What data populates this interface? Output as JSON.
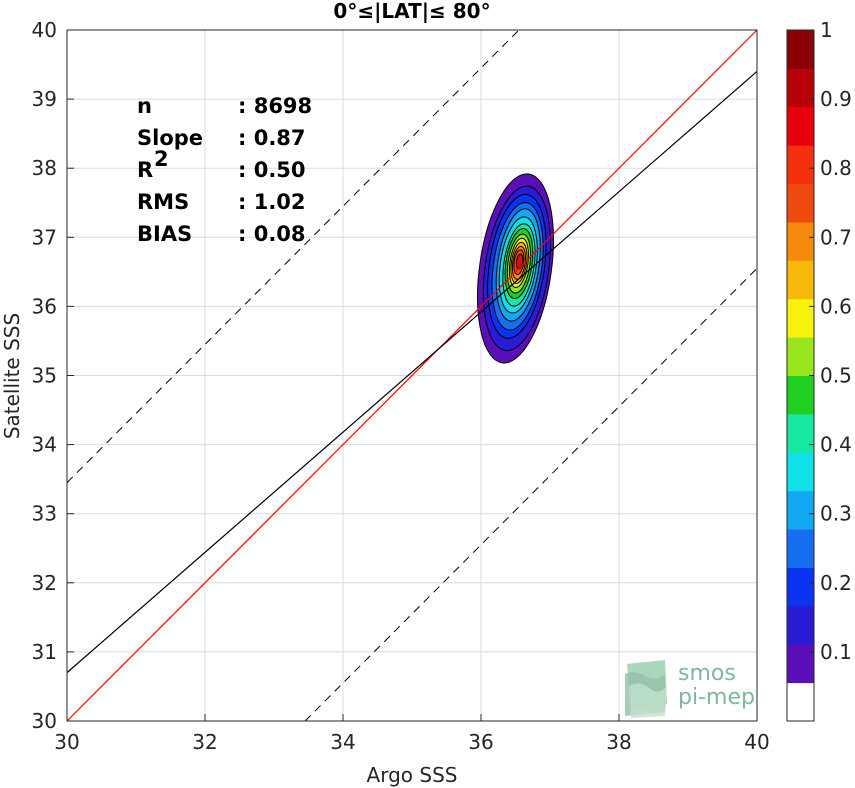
{
  "chart_data": {
    "type": "scatter",
    "title": "0°≤|LAT|≤ 80°",
    "xlabel": "Argo SSS",
    "ylabel": "Satellite SSS",
    "xlim": [
      30,
      40
    ],
    "ylim": [
      30,
      40
    ],
    "xticks": [
      "30",
      "32",
      "34",
      "36",
      "38",
      "40"
    ],
    "yticks": [
      "30",
      "31",
      "32",
      "33",
      "34",
      "35",
      "36",
      "37",
      "38",
      "39",
      "40"
    ],
    "grid": true,
    "stats": [
      {
        "label": "n",
        "sep": ":",
        "value": "8698"
      },
      {
        "label": "Slope",
        "sep": ":",
        "value": "0.87"
      },
      {
        "label": "R",
        "sup": "2",
        "sep": ":",
        "value": "0.50"
      },
      {
        "label": "RMS",
        "sep": ":",
        "value": "1.02"
      },
      {
        "label": "BIAS",
        "sep": ":",
        "value": "0.08"
      }
    ],
    "lines": {
      "identity": {
        "color": "#ff0000",
        "points": [
          [
            30,
            30
          ],
          [
            40,
            40
          ]
        ]
      },
      "fit": {
        "color": "#000000",
        "slope": 0.87,
        "intercept": 4.6
      },
      "bounds": {
        "style": "dashed",
        "offset": 3.45
      }
    },
    "density_contours": {
      "center": [
        36.55,
        36.6
      ],
      "levels": [
        {
          "level": 0.05,
          "color": "#5a0fb8",
          "rx": 0.52,
          "ry": 1.38,
          "cx": 36.5,
          "cy": 36.55
        },
        {
          "level": 0.15,
          "color": "#2b1ad6",
          "rx": 0.46,
          "ry": 1.2,
          "cx": 36.52,
          "cy": 36.55
        },
        {
          "level": 0.2,
          "color": "#0a34f2",
          "rx": 0.4,
          "ry": 1.05,
          "cx": 36.52,
          "cy": 36.58
        },
        {
          "level": 0.25,
          "color": "#1470f0",
          "rx": 0.35,
          "ry": 0.93,
          "cx": 36.53,
          "cy": 36.58
        },
        {
          "level": 0.3,
          "color": "#12a8f2",
          "rx": 0.3,
          "ry": 0.82,
          "cx": 36.54,
          "cy": 36.6
        },
        {
          "level": 0.4,
          "color": "#10e0e8",
          "rx": 0.26,
          "ry": 0.7,
          "cx": 36.54,
          "cy": 36.6
        },
        {
          "level": 0.45,
          "color": "#16e8a0",
          "rx": 0.22,
          "ry": 0.6,
          "cx": 36.55,
          "cy": 36.6
        },
        {
          "level": 0.5,
          "color": "#20d020",
          "rx": 0.19,
          "ry": 0.51,
          "cx": 36.55,
          "cy": 36.62
        },
        {
          "level": 0.55,
          "color": "#9ae61e",
          "rx": 0.16,
          "ry": 0.43,
          "cx": 36.55,
          "cy": 36.62
        },
        {
          "level": 0.6,
          "color": "#f7f20a",
          "rx": 0.13,
          "ry": 0.36,
          "cx": 36.55,
          "cy": 36.63
        },
        {
          "level": 0.7,
          "color": "#f7b80a",
          "rx": 0.11,
          "ry": 0.3,
          "cx": 36.55,
          "cy": 36.63
        },
        {
          "level": 0.75,
          "color": "#f5890c",
          "rx": 0.09,
          "ry": 0.24,
          "cx": 36.55,
          "cy": 36.63
        },
        {
          "level": 0.85,
          "color": "#ef4a10",
          "rx": 0.07,
          "ry": 0.18,
          "cx": 36.55,
          "cy": 36.64
        },
        {
          "level": 0.95,
          "color": "#d8100e",
          "rx": 0.045,
          "ry": 0.11,
          "cx": 36.56,
          "cy": 36.65
        }
      ]
    },
    "colorbar": {
      "min": 0,
      "max": 1,
      "ticks": [
        "0.1",
        "0.2",
        "0.3",
        "0.4",
        "0.5",
        "0.6",
        "0.7",
        "0.8",
        "0.9",
        "1"
      ],
      "colors": [
        "#ffffff",
        "#5a0fb8",
        "#2b1ad6",
        "#0a34f2",
        "#1470f0",
        "#12a8f2",
        "#10e0e8",
        "#16e8a0",
        "#20d020",
        "#9ae61e",
        "#f7f20a",
        "#f7b80a",
        "#f5890c",
        "#ef4a10",
        "#f5300c",
        "#e8000e",
        "#b80008",
        "#8a0004"
      ]
    }
  },
  "logo": {
    "line1": "smos",
    "line2": "pi-mep"
  }
}
